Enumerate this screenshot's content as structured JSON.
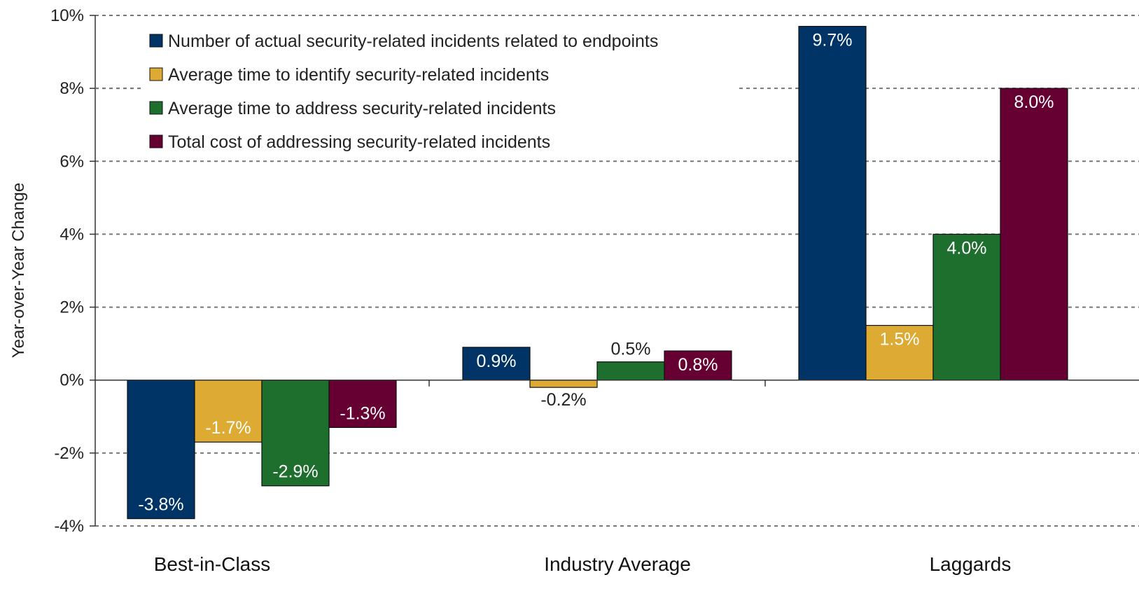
{
  "chart_data": {
    "type": "bar",
    "ylabel": "Year-over-Year Change",
    "xlabel": "",
    "ylim": [
      -4,
      10
    ],
    "yticks": [
      "10%",
      "8%",
      "6%",
      "4%",
      "2%",
      "0%",
      "-2%",
      "-4%"
    ],
    "ytick_values": [
      10,
      8,
      6,
      4,
      2,
      0,
      -2,
      -4
    ],
    "grid": "horizontal dashed",
    "legend_position": "top-left",
    "categories": [
      "Best-in-Class",
      "Industry Average",
      "Laggards"
    ],
    "series": [
      {
        "name": "Number of actual security-related incidents related to endpoints",
        "color": "#003366",
        "values": [
          -3.8,
          0.9,
          9.7
        ],
        "labels": [
          "-3.8%",
          "0.9%",
          "9.7%"
        ]
      },
      {
        "name": "Average time to identify security-related incidents",
        "color": "#DDAA33",
        "values": [
          -1.7,
          -0.2,
          1.5
        ],
        "labels": [
          "-1.7%",
          "-0.2%",
          "1.5%"
        ]
      },
      {
        "name": "Average time to address security-related incidents",
        "color": "#1E6E2E",
        "values": [
          -2.9,
          0.5,
          4.0
        ],
        "labels": [
          "-2.9%",
          "0.5%",
          "4.0%"
        ]
      },
      {
        "name": "Total cost of addressing security-related incidents",
        "color": "#660033",
        "values": [
          -1.3,
          0.8,
          8.0
        ],
        "labels": [
          "-1.3%",
          "0.8%",
          "8.0%"
        ]
      }
    ]
  }
}
